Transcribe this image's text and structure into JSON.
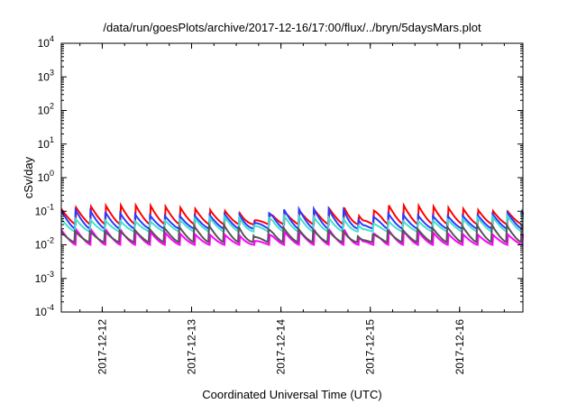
{
  "chart_data": {
    "type": "line",
    "title": "/data/run/goesPlots/archive/2017-12-16/17:00/flux/../bryn/5daysMars.plot",
    "xlabel": "Coordinated Universal Time (UTC)",
    "ylabel": "cSv/day",
    "yscale": "log",
    "ylim": [
      0.0001,
      10000
    ],
    "y_ticks": [
      {
        "base": "10",
        "exp": "4"
      },
      {
        "base": "10",
        "exp": "3"
      },
      {
        "base": "10",
        "exp": "2"
      },
      {
        "base": "10",
        "exp": "1"
      },
      {
        "base": "10",
        "exp": "0"
      },
      {
        "base": "10",
        "exp": "-1"
      },
      {
        "base": "10",
        "exp": "-2"
      },
      {
        "base": "10",
        "exp": "-3"
      },
      {
        "base": "10",
        "exp": "-4"
      }
    ],
    "x_ticks": [
      "2017-12-12",
      "2017-12-13",
      "2017-12-14",
      "2017-12-15",
      "2017-12-16"
    ],
    "xlim": [
      "2017-12-11 13:00",
      "2017-12-16 17:00"
    ],
    "grid": false,
    "series": [
      {
        "color": "#ff0000",
        "values_range": [
          0.04,
          0.15
        ]
      },
      {
        "color": "#ff00ff",
        "values_range": [
          0.01,
          0.03
        ]
      },
      {
        "color": "#2a3aff",
        "values_range": [
          0.03,
          0.12
        ]
      },
      {
        "color": "#40e0d0",
        "values_range": [
          0.025,
          0.08
        ]
      },
      {
        "color": "#555555",
        "values_range": [
          0.012,
          0.04
        ]
      }
    ],
    "pattern": "sawtooth, about 6 cycles per day with dips near 2017-12-11 13:00, 2017-12-13 17:00 and 2017-12-14 22:00"
  }
}
